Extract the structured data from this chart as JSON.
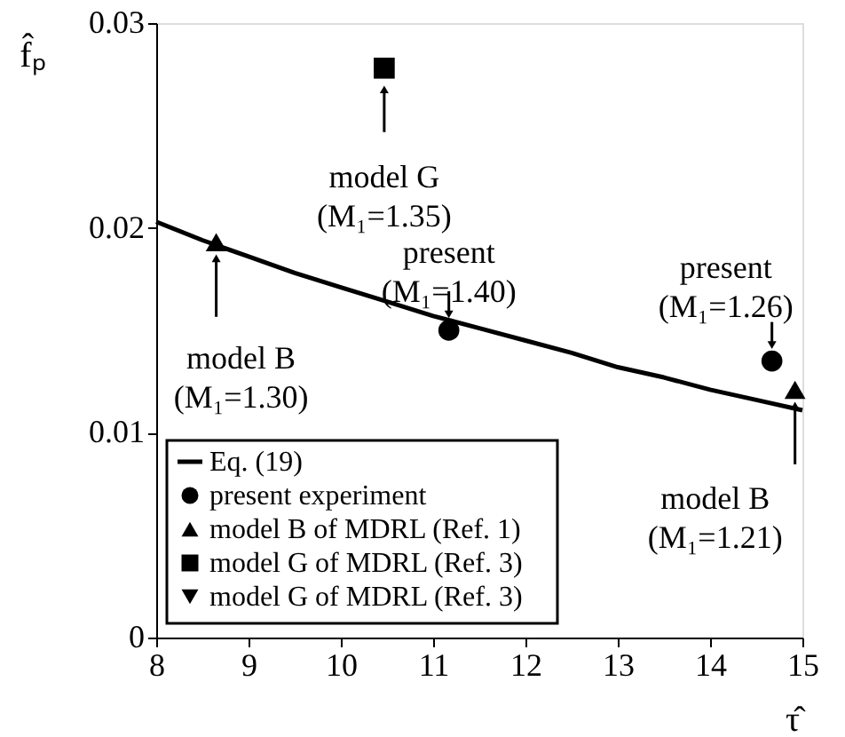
{
  "chart_data": {
    "type": "scatter",
    "xlabel": "τ̂",
    "ylabel": "f̂ₚ",
    "xlim": [
      8,
      15
    ],
    "xticks": [
      8,
      9,
      10,
      11,
      12,
      13,
      14,
      15
    ],
    "ylim": [
      0,
      0.03
    ],
    "yticks": [
      0,
      0.01,
      0.02,
      0.03
    ],
    "legend": "bottom left",
    "grid": false,
    "series": [
      {
        "name": "Eq. (19)",
        "type": "line",
        "marker": "none",
        "color": "#000000",
        "x": [
          8,
          8.5,
          9,
          9.5,
          10,
          10.5,
          11,
          11.5,
          12,
          12.5,
          13,
          13.5,
          14,
          14.5,
          15
        ],
        "values": [
          0.0203,
          0.0194,
          0.0186,
          0.0178,
          0.0171,
          0.0164,
          0.0157,
          0.0151,
          0.0145,
          0.0139,
          0.0132,
          0.0127,
          0.0121,
          0.0116,
          0.0111
        ]
      },
      {
        "name": "present experiment",
        "marker": "circle",
        "color": "#000000",
        "x": [
          11.17,
          14.67
        ],
        "values": [
          0.015,
          0.0135
        ]
      },
      {
        "name": "model B of MDRL (Ref. 1)",
        "marker": "triangle",
        "color": "#000000",
        "x": [
          8.65,
          14.92
        ],
        "values": [
          0.0193,
          0.0121
        ]
      },
      {
        "name": "model G of MDRL (Ref. 3)",
        "marker": "square",
        "color": "#000000",
        "x": [
          10.47
        ],
        "values": [
          0.0278
        ]
      },
      {
        "name": "model G of MDRL (Ref. 3)",
        "marker": "triangle-down",
        "color": "#000000"
      }
    ],
    "annotations": [
      {
        "text": "model B\n(M₁=1.30)",
        "x": 8.65,
        "y": 0.0193
      },
      {
        "text": "model G\n(M₁=1.35)",
        "x": 10.47,
        "y": 0.0278
      },
      {
        "text": "present\n(M₁=1.40)",
        "x": 11.17,
        "y": 0.015
      },
      {
        "text": "present\n(M₁=1.26)",
        "x": 14.67,
        "y": 0.0135
      },
      {
        "text": "model B\n(M₁=1.21)",
        "x": 14.92,
        "y": 0.0121
      }
    ]
  }
}
